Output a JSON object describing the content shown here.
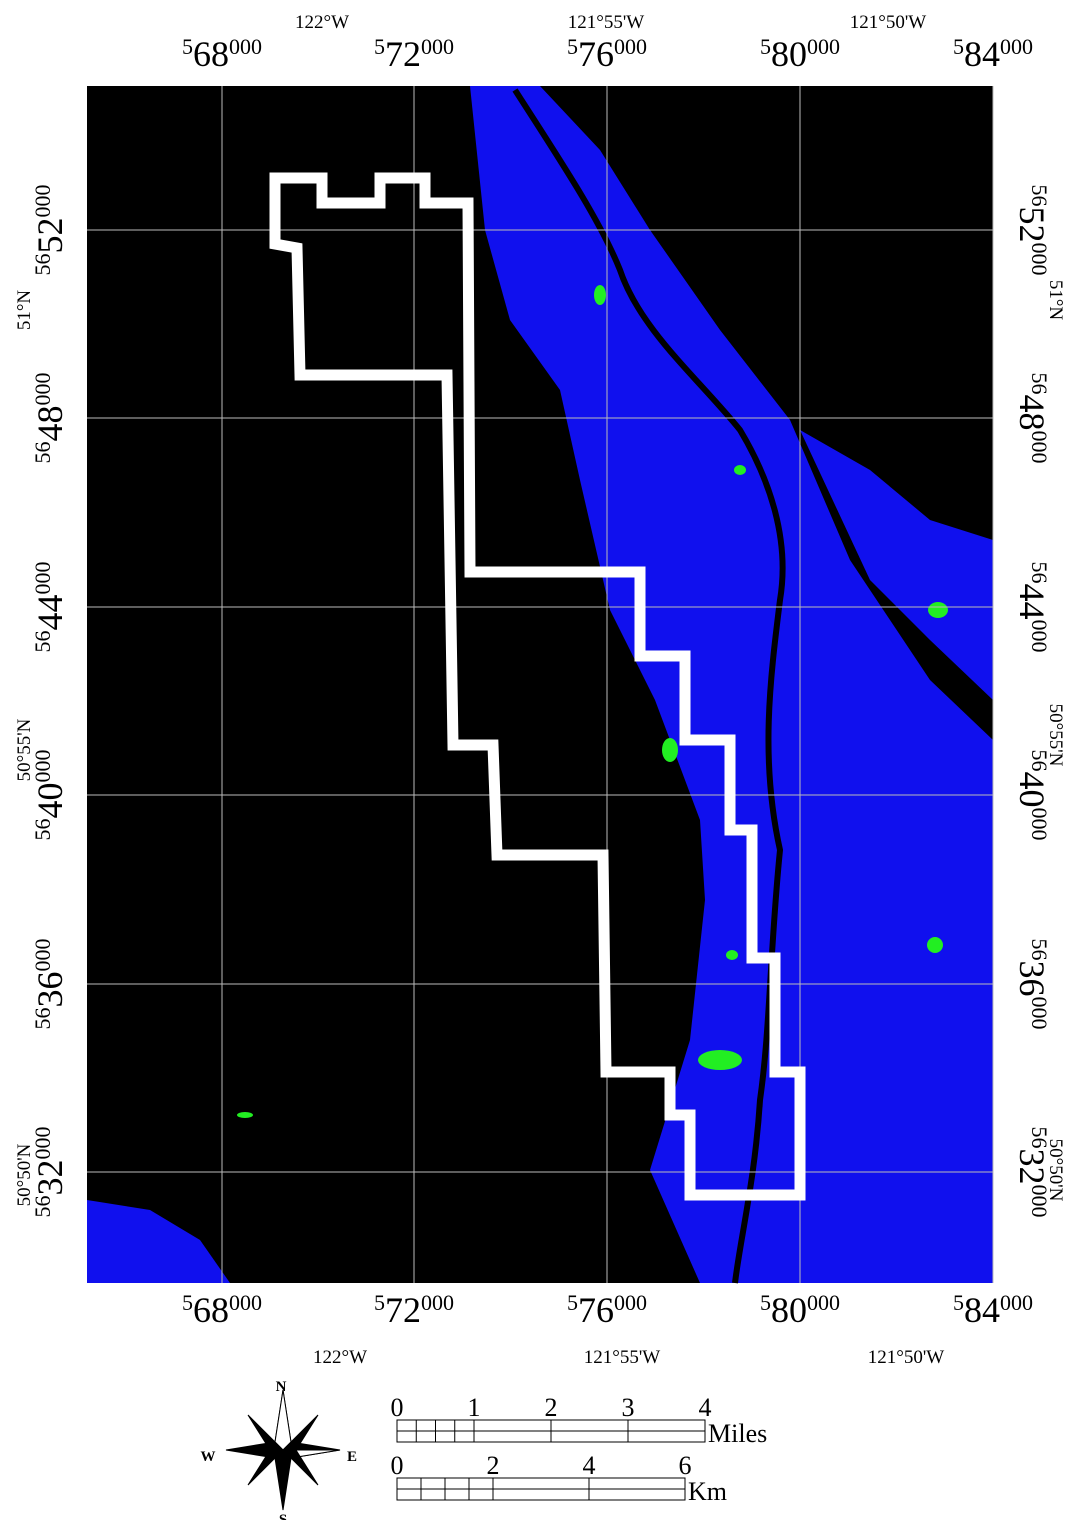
{
  "map": {
    "longitude_labels": [
      "122°W",
      "121°55'W",
      "121°50'W"
    ],
    "easting_labels": [
      {
        "lead": "5",
        "main": "68",
        "tail": "000"
      },
      {
        "lead": "5",
        "main": "72",
        "tail": "000"
      },
      {
        "lead": "5",
        "main": "76",
        "tail": "000"
      },
      {
        "lead": "5",
        "main": "80",
        "tail": "000"
      },
      {
        "lead": "5",
        "main": "84",
        "tail": "000"
      }
    ],
    "northing_labels": [
      {
        "lead": "56",
        "main": "52",
        "tail": "000"
      },
      {
        "lead": "56",
        "main": "48",
        "tail": "000"
      },
      {
        "lead": "56",
        "main": "44",
        "tail": "000"
      },
      {
        "lead": "56",
        "main": "40",
        "tail": "000"
      },
      {
        "lead": "56",
        "main": "36",
        "tail": "000"
      },
      {
        "lead": "56",
        "main": "32",
        "tail": "000"
      }
    ],
    "latitude_labels": [
      "51°N",
      "50°55'N",
      "50°50'N"
    ]
  },
  "compass": {
    "north": "N",
    "west": "W",
    "east": "E",
    "south": "S"
  },
  "scale_bar": {
    "miles_ticks": [
      "0",
      "1",
      "2",
      "3",
      "4"
    ],
    "miles_unit": "Miles",
    "km_ticks": [
      "0",
      "2",
      "4",
      "6"
    ],
    "km_unit": "Km"
  }
}
